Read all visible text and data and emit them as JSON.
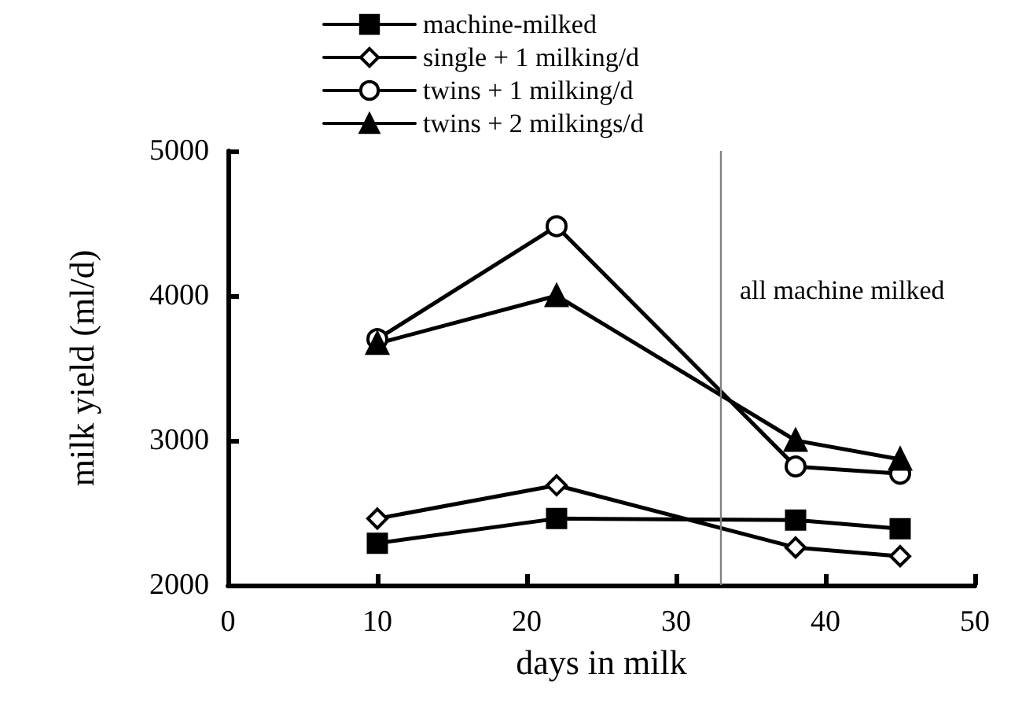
{
  "chart_data": {
    "type": "line",
    "xlabel": "days in milk",
    "ylabel": "milk yield (ml/d)",
    "x": [
      10,
      22,
      38,
      45
    ],
    "series": [
      {
        "name": "machine-milked",
        "color": "#000000",
        "marker": "square",
        "values": [
          2290,
          2460,
          2450,
          2390
        ]
      },
      {
        "name": "single + 1 milking/d",
        "color": "#000000",
        "marker": "diamond",
        "values": [
          2460,
          2690,
          2260,
          2200
        ]
      },
      {
        "name": "twins + 1 milking/d",
        "color": "#000000",
        "marker": "circle",
        "values": [
          3700,
          4480,
          2820,
          2770
        ]
      },
      {
        "name": "twins + 2 milkings/d",
        "color": "#000000",
        "marker": "triangle",
        "values": [
          3670,
          4000,
          3000,
          2870
        ]
      }
    ],
    "xlim": [
      0,
      50
    ],
    "xticks": [
      0,
      10,
      20,
      30,
      40,
      50
    ],
    "ylim": [
      2000,
      5000
    ],
    "yticks": [
      2000,
      3000,
      4000,
      5000
    ],
    "ref_lines": [
      {
        "axis": "x",
        "value": 33,
        "label": "all machine milked",
        "color": "#808080"
      }
    ],
    "grid": false,
    "legend": "top",
    "line_style": "solid"
  }
}
